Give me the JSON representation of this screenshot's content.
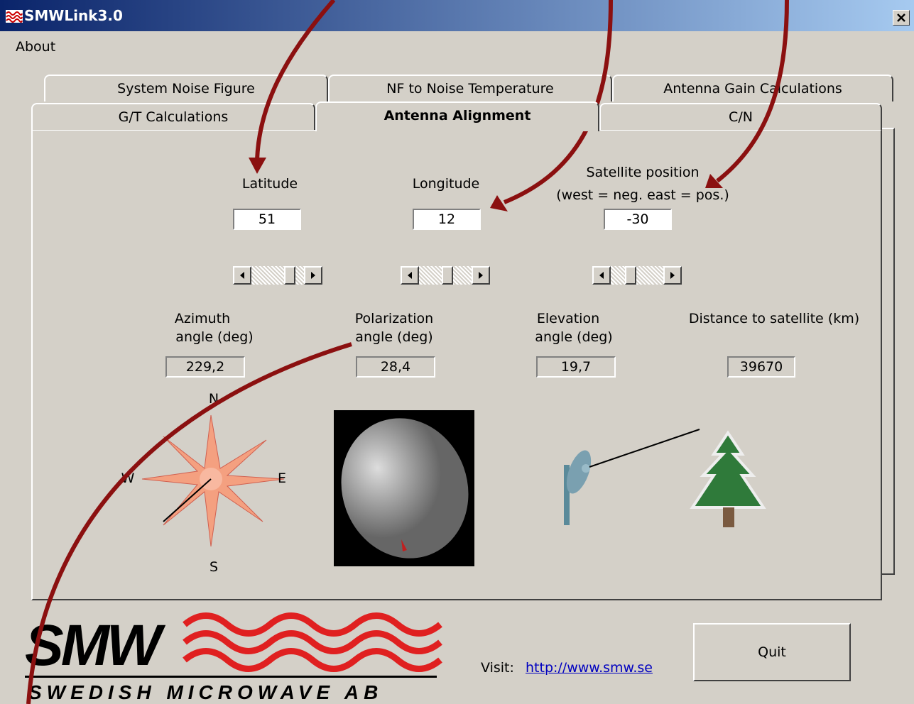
{
  "window": {
    "title": "SMWLink3.0"
  },
  "menu": [
    "About"
  ],
  "tabs": {
    "back_row": [
      "System Noise Figure",
      "NF to Noise Temperature",
      "Antenna Gain Calculations"
    ],
    "front_row": [
      "G/T Calculations",
      "Antenna Alignment",
      "C/N"
    ]
  },
  "inputs": [
    {
      "label": [
        "Latitude"
      ],
      "value": 51
    },
    {
      "label": [
        "Longitude"
      ],
      "value": 12
    },
    {
      "label": [
        "Satellite position",
        "(west = neg.  east = pos.)"
      ],
      "value": -30
    }
  ],
  "outputs": [
    {
      "label": [
        "Azimuth",
        "angle (deg)"
      ],
      "value": "229,2"
    },
    {
      "label": [
        "Polarization",
        "angle (deg)"
      ],
      "value": "28,4"
    },
    {
      "label": [
        "Elevation",
        "angle (deg)"
      ],
      "value": "19,7"
    },
    {
      "label": [
        "Distance to satellite (km)"
      ],
      "value": "39670"
    }
  ],
  "compass": {
    "north": "N",
    "east": "E",
    "south": "S",
    "west": "W"
  },
  "logo": {
    "name": "SMW",
    "company": "SWEDISH MICROWAVE AB"
  },
  "footer": {
    "visit": "Visit:",
    "link": "http://www.smw.se",
    "quit": "Quit"
  }
}
